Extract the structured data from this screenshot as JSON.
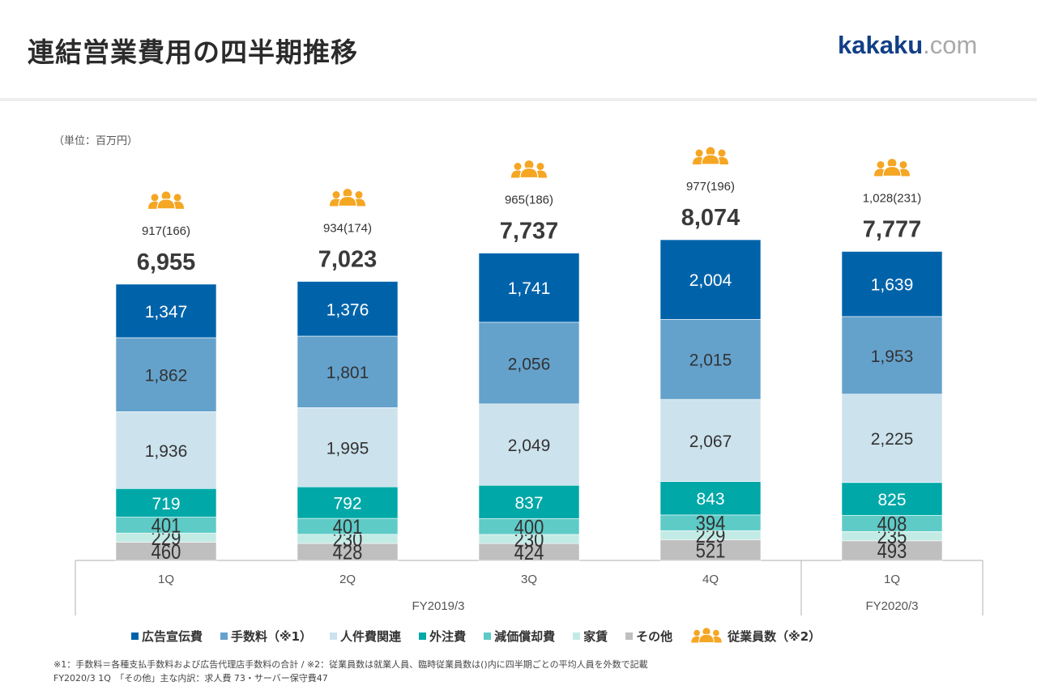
{
  "header": {
    "title": "連結営業費用の四半期推移",
    "logo_main": "kakaku",
    "logo_suffix": ".com"
  },
  "unit_label": "（単位：百万円）",
  "chart_data": {
    "type": "bar",
    "stacked": true,
    "title": "連結営業費用の四半期推移",
    "unit": "百万円",
    "categories": [
      "1Q",
      "2Q",
      "3Q",
      "4Q",
      "1Q"
    ],
    "fiscal_groups": [
      {
        "label": "FY2019/3",
        "categories": [
          "1Q",
          "2Q",
          "3Q",
          "4Q"
        ]
      },
      {
        "label": "FY2020/3",
        "categories": [
          "1Q"
        ]
      }
    ],
    "series": [
      {
        "name": "その他",
        "color": "#bfbfbf",
        "label_color": "#333333",
        "values": [
          460,
          428,
          424,
          521,
          493
        ]
      },
      {
        "name": "家賃",
        "color": "#c3ebe5",
        "label_color": "#333333",
        "values": [
          229,
          230,
          230,
          229,
          235
        ]
      },
      {
        "name": "減価償却費",
        "color": "#5ecbc7",
        "label_color": "#333333",
        "values": [
          401,
          401,
          400,
          394,
          408
        ]
      },
      {
        "name": "外注費",
        "color": "#00a8a8",
        "label_color": "#ffffff",
        "values": [
          719,
          792,
          837,
          843,
          825
        ]
      },
      {
        "name": "人件費関連",
        "color": "#cce2ed",
        "label_color": "#333333",
        "values": [
          1936,
          1995,
          2049,
          2067,
          2225
        ]
      },
      {
        "name": "手数料（※1）",
        "color": "#64a2cc",
        "label_color": "#333333",
        "values": [
          1862,
          1801,
          2056,
          2015,
          1953
        ]
      },
      {
        "name": "広告宣伝費",
        "color": "#0063aa",
        "label_color": "#ffffff",
        "values": [
          1347,
          1376,
          1741,
          2004,
          1639
        ]
      }
    ],
    "totals": [
      "6,955",
      "7,023",
      "7,737",
      "8,074",
      "7,777"
    ],
    "employees": [
      "917(166)",
      "934(174)",
      "965(186)",
      "977(196)",
      "1,028(231)"
    ],
    "employee_icon_color": "#f5a623",
    "legend_placement": "bottom",
    "grid": false
  },
  "legend": [
    {
      "label": "広告宣伝費",
      "color": "#0063aa"
    },
    {
      "label": "手数料（※1）",
      "color": "#64a2cc"
    },
    {
      "label": "人件費関連",
      "color": "#cce2ed"
    },
    {
      "label": "外注費",
      "color": "#00a8a8"
    },
    {
      "label": "減価償却費",
      "color": "#5ecbc7"
    },
    {
      "label": "家賃",
      "color": "#c3ebe5"
    },
    {
      "label": "その他",
      "color": "#bfbfbf"
    }
  ],
  "legend_employees": {
    "label": "従業員数（※2）",
    "icon": "people-icon"
  },
  "notes": [
    "※1：手数料＝各種支払手数料および広告代理店手数料の合計 / ※2：従業員数は就業人員、臨時従業員数は()内に四半期ごとの平均人員を外数で記載",
    "FY2020/3 1Q　「その他」主な内訳：求人費 73・サーバー保守費47"
  ]
}
